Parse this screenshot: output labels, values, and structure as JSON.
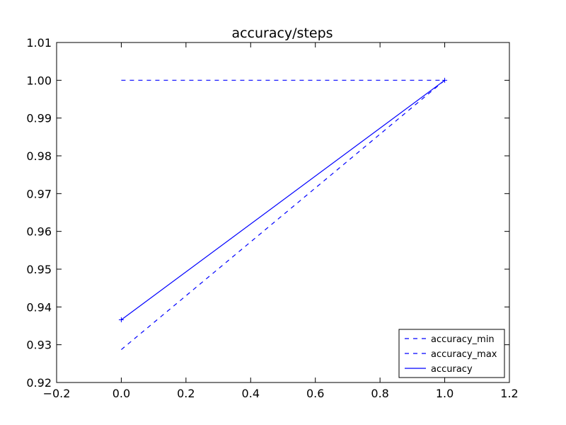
{
  "chart_data": {
    "type": "line",
    "title": "accuracy/steps",
    "xlabel": "",
    "ylabel": "",
    "xlim": [
      -0.2,
      1.2
    ],
    "ylim": [
      0.92,
      1.01
    ],
    "x_ticks": [
      "−0.2",
      "0.0",
      "0.2",
      "0.4",
      "0.6",
      "0.8",
      "1.0",
      "1.2"
    ],
    "y_ticks": [
      "0.92",
      "0.93",
      "0.94",
      "0.95",
      "0.96",
      "0.97",
      "0.98",
      "0.99",
      "1.00",
      "1.01"
    ],
    "grid": false,
    "legend_position": "bottom-right",
    "series": [
      {
        "name": "accuracy_min",
        "x": [
          0,
          1
        ],
        "values": [
          0.9287,
          1.0
        ],
        "style": "dashed",
        "marker": "none",
        "color": "#0000ff"
      },
      {
        "name": "accuracy_max",
        "x": [
          0,
          1
        ],
        "values": [
          1.0,
          1.0
        ],
        "style": "dashed",
        "marker": "none",
        "color": "#0000ff"
      },
      {
        "name": "accuracy",
        "x": [
          0,
          1
        ],
        "values": [
          0.9366,
          1.0
        ],
        "style": "solid",
        "marker": "plus",
        "color": "#0000ff"
      }
    ]
  }
}
